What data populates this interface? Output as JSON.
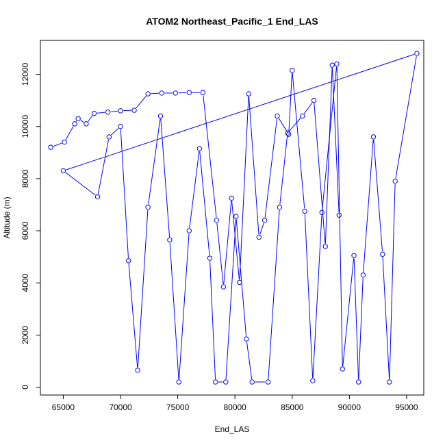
{
  "chart_data": {
    "type": "line",
    "title": "ATOM2 Northeast_Pacific_1 End_LAS",
    "xlabel": "End_LAS",
    "ylabel": "Altitude (m)",
    "xlim": [
      63000,
      96500
    ],
    "ylim": [
      -300,
      13300
    ],
    "x_ticks": [
      65000,
      70000,
      75000,
      80000,
      85000,
      90000,
      95000
    ],
    "y_ticks": [
      0,
      2000,
      4000,
      6000,
      8000,
      10000,
      12000
    ],
    "grid": false,
    "legend": "none",
    "series": [
      {
        "color": "#0000ff",
        "marker": "open-circle",
        "points": [
          [
            63900,
            9200
          ],
          [
            65100,
            9400
          ],
          [
            66000,
            10100
          ],
          [
            66300,
            10300
          ],
          [
            67000,
            10100
          ],
          [
            67700,
            10500
          ],
          [
            68900,
            10550
          ],
          [
            70000,
            10600
          ],
          [
            71200,
            10620
          ],
          [
            72400,
            11250
          ],
          [
            73600,
            11280
          ],
          [
            74800,
            11280
          ],
          [
            76000,
            11300
          ],
          [
            77200,
            11300
          ],
          [
            78400,
            6400
          ],
          [
            79000,
            3850
          ],
          [
            79700,
            7250
          ],
          [
            80400,
            4020
          ],
          [
            81200,
            11250
          ],
          [
            82100,
            5750
          ],
          [
            82600,
            6400
          ],
          [
            83700,
            10400
          ],
          [
            84700,
            9700
          ],
          [
            85000,
            12150
          ],
          [
            86100,
            6750
          ],
          [
            86800,
            250
          ],
          [
            87600,
            6700
          ],
          [
            88900,
            12400
          ],
          [
            89400,
            700
          ],
          [
            90400,
            5050
          ],
          [
            90800,
            200
          ],
          [
            91200,
            4300
          ],
          [
            92100,
            9600
          ],
          [
            92900,
            5100
          ],
          [
            93500,
            200
          ],
          [
            94000,
            7900
          ],
          [
            95900,
            12800
          ],
          [
            65000,
            8300
          ],
          [
            68000,
            7300
          ],
          [
            69000,
            9600
          ],
          [
            70000,
            10000
          ],
          [
            70700,
            4850
          ],
          [
            71500,
            650
          ],
          [
            72400,
            6900
          ],
          [
            73500,
            10400
          ],
          [
            74300,
            5650
          ],
          [
            75100,
            200
          ],
          [
            76000,
            6000
          ],
          [
            76900,
            9150
          ],
          [
            77800,
            4950
          ],
          [
            78300,
            200
          ],
          [
            79200,
            200
          ],
          [
            80100,
            6550
          ],
          [
            81000,
            1850
          ],
          [
            81500,
            200
          ],
          [
            82900,
            200
          ],
          [
            83900,
            6900
          ],
          [
            84600,
            9750
          ],
          [
            85900,
            10400
          ],
          [
            86900,
            11000
          ],
          [
            87900,
            5400
          ],
          [
            88500,
            12350
          ],
          [
            89100,
            6600
          ]
        ]
      }
    ]
  }
}
